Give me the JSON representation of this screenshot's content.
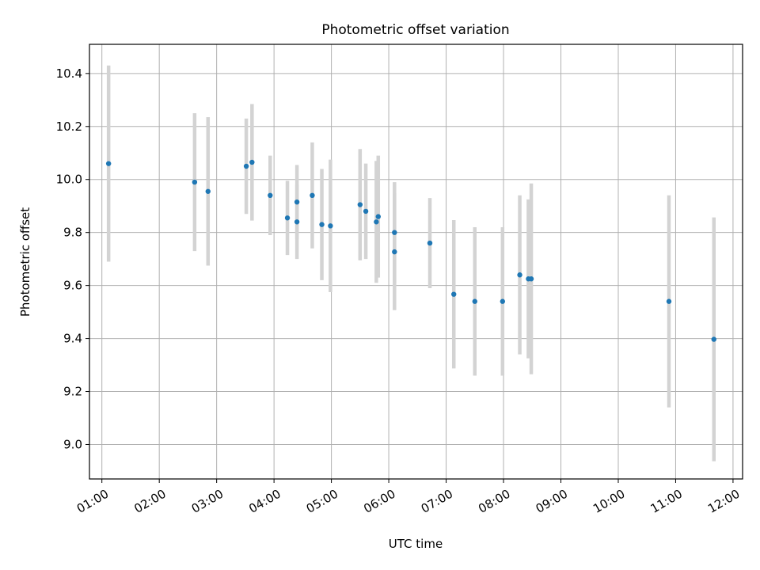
{
  "chart_data": {
    "type": "scatter",
    "title": "Photometric offset variation",
    "xlabel": "UTC time",
    "ylabel": "Photometric offset",
    "xlim": [
      "00:47",
      "12:10"
    ],
    "ylim": [
      8.87,
      10.51
    ],
    "x_ticks": [
      "01:00",
      "02:00",
      "03:00",
      "04:00",
      "05:00",
      "06:00",
      "07:00",
      "08:00",
      "09:00",
      "10:00",
      "11:00",
      "12:00"
    ],
    "y_ticks": [
      "9.0",
      "9.2",
      "9.4",
      "9.6",
      "9.8",
      "10.0",
      "10.2",
      "10.4"
    ],
    "grid": true,
    "marker_color": "#1f77b4",
    "errorbar_color": "#d3d3d3",
    "series": [
      {
        "points": [
          {
            "x": "01:07",
            "y": 10.06,
            "err": 0.37
          },
          {
            "x": "02:37",
            "y": 9.99,
            "err": 0.26
          },
          {
            "x": "02:51",
            "y": 9.955,
            "err": 0.28
          },
          {
            "x": "03:31",
            "y": 10.05,
            "err": 0.18
          },
          {
            "x": "03:37",
            "y": 10.065,
            "err": 0.22
          },
          {
            "x": "03:56",
            "y": 9.94,
            "err": 0.15
          },
          {
            "x": "04:14",
            "y": 9.855,
            "err": 0.14
          },
          {
            "x": "04:24",
            "y": 9.915,
            "err": 0.14
          },
          {
            "x": "04:24",
            "y": 9.84,
            "err": 0.14
          },
          {
            "x": "04:40",
            "y": 9.94,
            "err": 0.2
          },
          {
            "x": "04:50",
            "y": 9.83,
            "err": 0.21
          },
          {
            "x": "04:59",
            "y": 9.825,
            "err": 0.25
          },
          {
            "x": "05:30",
            "y": 9.905,
            "err": 0.21
          },
          {
            "x": "05:36",
            "y": 9.88,
            "err": 0.18
          },
          {
            "x": "05:47",
            "y": 9.84,
            "err": 0.23
          },
          {
            "x": "05:49",
            "y": 9.86,
            "err": 0.23
          },
          {
            "x": "06:06",
            "y": 9.8,
            "err": 0.19
          },
          {
            "x": "06:06",
            "y": 9.727,
            "err": 0.22
          },
          {
            "x": "06:43",
            "y": 9.76,
            "err": 0.17
          },
          {
            "x": "07:08",
            "y": 9.567,
            "err": 0.28
          },
          {
            "x": "07:30",
            "y": 9.54,
            "err": 0.28
          },
          {
            "x": "07:59",
            "y": 9.54,
            "err": 0.28
          },
          {
            "x": "08:17",
            "y": 9.64,
            "err": 0.3
          },
          {
            "x": "08:26",
            "y": 9.625,
            "err": 0.3
          },
          {
            "x": "08:29",
            "y": 9.625,
            "err": 0.36
          },
          {
            "x": "10:53",
            "y": 9.54,
            "err": 0.4
          },
          {
            "x": "11:40",
            "y": 9.397,
            "err": 0.46
          }
        ]
      }
    ]
  }
}
